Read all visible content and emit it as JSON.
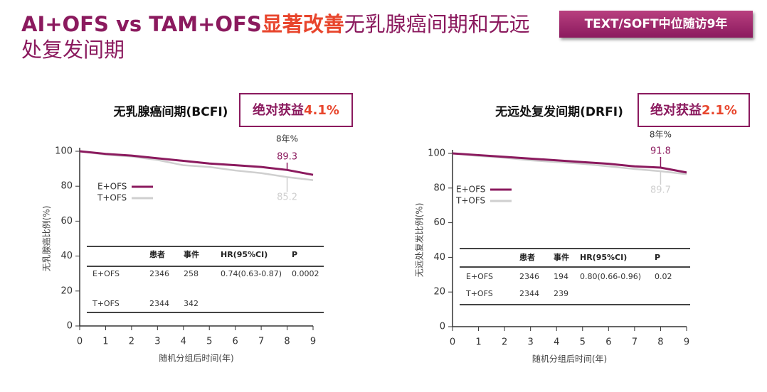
{
  "title": "AI+OFS vs TAM+OFS",
  "title_highlight": "显著改善",
  "title_rest": "无乳腺癌间期和无远处复发间期",
  "badge": "TEXT/SOFT中位随访9年",
  "chart_data": [
    {
      "type": "line",
      "title": "无乳腺癌间期(BCFI)",
      "benefit_label": "绝对获益",
      "benefit_value": "4.1%",
      "x_label": "随机分组后时间(年)",
      "y_label": "无乳腺癌比例(%)",
      "x": [
        0,
        1,
        2,
        3,
        4,
        5,
        6,
        7,
        8,
        9
      ],
      "xlim": [
        0,
        9
      ],
      "xticks": [
        0,
        1,
        2,
        3,
        4,
        5,
        6,
        7,
        8,
        9
      ],
      "ylim": [
        0,
        100
      ],
      "yticks": [
        0,
        20,
        40,
        60,
        80,
        100
      ],
      "series": [
        {
          "name": "E+OFS",
          "color": "#8b1a5e",
          "values": [
            100,
            98.5,
            97.5,
            96,
            94.5,
            93,
            92,
            91,
            89.3,
            86.5
          ]
        },
        {
          "name": "T+OFS",
          "color": "#cfcfcf",
          "values": [
            100,
            98,
            97,
            95,
            92,
            91,
            89,
            87.5,
            85.2,
            83.5
          ]
        }
      ],
      "annotation_header": "8年%",
      "annotations": [
        {
          "x": 8,
          "value": 89.3,
          "color": "#8b1a5e"
        },
        {
          "x": 8,
          "value": 85.2,
          "color": "#cfcfcf"
        }
      ],
      "table": {
        "headers": [
          "患者",
          "事件",
          "HR(95%CI)",
          "P"
        ],
        "rows": [
          [
            "E+OFS",
            "2346",
            "258",
            "0.74(0.63-0.87)",
            "0.0002"
          ],
          [
            "T+OFS",
            "2344",
            "342",
            "",
            ""
          ]
        ]
      }
    },
    {
      "type": "line",
      "title": "无远处复发间期(DRFI)",
      "benefit_label": "绝对获益",
      "benefit_value": "2.1%",
      "x_label": "随机分组后时间(年)",
      "y_label": "无远处复发比例(%)",
      "x": [
        0,
        1,
        2,
        3,
        4,
        5,
        6,
        7,
        8,
        9
      ],
      "xlim": [
        0,
        9
      ],
      "xticks": [
        0,
        1,
        2,
        3,
        4,
        5,
        6,
        7,
        8,
        9
      ],
      "ylim": [
        0,
        100
      ],
      "yticks": [
        0,
        20,
        40,
        60,
        80,
        100
      ],
      "series": [
        {
          "name": "E+OFS",
          "color": "#8b1a5e",
          "values": [
            100,
            99,
            98,
            97,
            96,
            95,
            94,
            92.5,
            91.8,
            89
          ]
        },
        {
          "name": "T+OFS",
          "color": "#cfcfcf",
          "values": [
            100,
            98.5,
            97.5,
            96,
            95,
            94,
            92.5,
            91,
            89.7,
            88
          ]
        }
      ],
      "annotation_header": "8年%",
      "annotations": [
        {
          "x": 8,
          "value": 91.8,
          "color": "#8b1a5e"
        },
        {
          "x": 8,
          "value": 89.7,
          "color": "#cfcfcf"
        }
      ],
      "table": {
        "headers": [
          "患者",
          "事件",
          "HR(95%CI)",
          "P"
        ],
        "rows": [
          [
            "E+OFS",
            "2346",
            "194",
            "0.80(0.66-0.96)",
            "0.02"
          ],
          [
            "T+OFS",
            "2344",
            "239",
            "",
            ""
          ]
        ]
      }
    }
  ]
}
